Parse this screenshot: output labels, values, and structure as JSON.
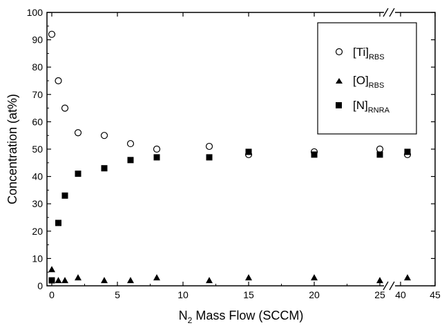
{
  "chart_data": {
    "type": "scatter",
    "xlabel_main": "N",
    "xlabel_sub": "2",
    "xlabel_rest": " Mass Flow (SCCM)",
    "ylabel": "Concentration (at%)",
    "xlim": [
      0,
      45
    ],
    "ylim": [
      0,
      100
    ],
    "x_ticks": [
      "0",
      "5",
      "10",
      "15",
      "20",
      "25",
      "40",
      "45"
    ],
    "y_ticks": [
      "0",
      "10",
      "20",
      "30",
      "40",
      "50",
      "60",
      "70",
      "80",
      "90",
      "100"
    ],
    "axis_break": "between 25 and 40",
    "legend_position": "top-right",
    "series": [
      {
        "name": "[Ti]",
        "name_sub": "RBS",
        "marker": "open-circle",
        "points": [
          {
            "x": 0,
            "y": 92
          },
          {
            "x": 0.5,
            "y": 75
          },
          {
            "x": 1,
            "y": 65
          },
          {
            "x": 2,
            "y": 56
          },
          {
            "x": 4,
            "y": 55
          },
          {
            "x": 6,
            "y": 52
          },
          {
            "x": 8,
            "y": 50
          },
          {
            "x": 12,
            "y": 51
          },
          {
            "x": 15,
            "y": 48
          },
          {
            "x": 20,
            "y": 49
          },
          {
            "x": 25,
            "y": 50
          },
          {
            "x": 41,
            "y": 48
          }
        ]
      },
      {
        "name": "[O]",
        "name_sub": "RBS",
        "marker": "filled-triangle",
        "points": [
          {
            "x": 0,
            "y": 6
          },
          {
            "x": 0.5,
            "y": 2
          },
          {
            "x": 1,
            "y": 2
          },
          {
            "x": 2,
            "y": 3
          },
          {
            "x": 4,
            "y": 2
          },
          {
            "x": 6,
            "y": 2
          },
          {
            "x": 8,
            "y": 3
          },
          {
            "x": 12,
            "y": 2
          },
          {
            "x": 15,
            "y": 3
          },
          {
            "x": 20,
            "y": 3
          },
          {
            "x": 25,
            "y": 2
          },
          {
            "x": 41,
            "y": 3
          }
        ]
      },
      {
        "name": "[N]",
        "name_sub": "RNRA",
        "marker": "filled-square",
        "points": [
          {
            "x": 0,
            "y": 2
          },
          {
            "x": 0.5,
            "y": 23
          },
          {
            "x": 1,
            "y": 33
          },
          {
            "x": 2,
            "y": 41
          },
          {
            "x": 4,
            "y": 43
          },
          {
            "x": 6,
            "y": 46
          },
          {
            "x": 8,
            "y": 47
          },
          {
            "x": 12,
            "y": 47
          },
          {
            "x": 15,
            "y": 49
          },
          {
            "x": 20,
            "y": 48
          },
          {
            "x": 25,
            "y": 48
          },
          {
            "x": 41,
            "y": 49
          }
        ]
      }
    ]
  }
}
